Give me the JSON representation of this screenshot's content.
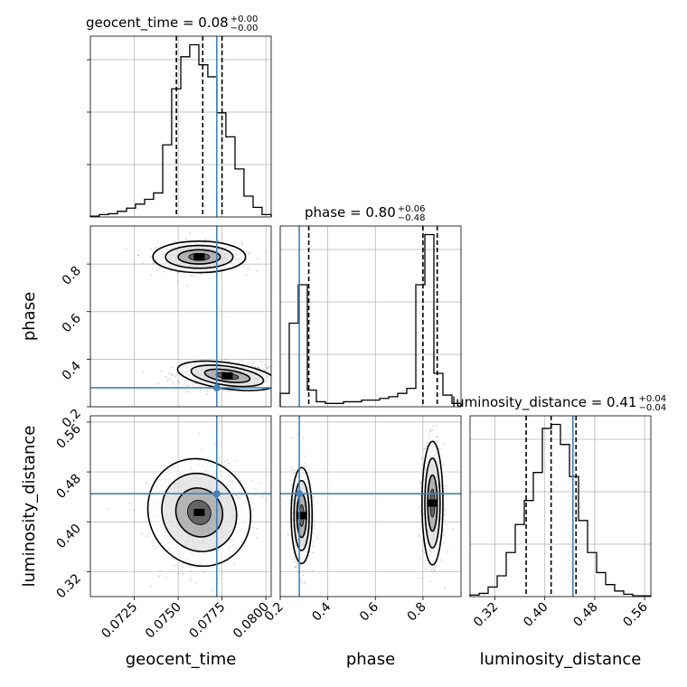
{
  "chart_data": {
    "type": "corner",
    "parameters": [
      "geocent_time",
      "phase",
      "luminosity_distance"
    ],
    "colors": {
      "truth": "#4682b4",
      "hist": "#000000",
      "grid": "#b0b0b0",
      "scatter": "#808080"
    },
    "titles": [
      {
        "param": "geocent_time",
        "text": "geocent_time = 0.08",
        "upper": "+0.00",
        "lower": "−0.00"
      },
      {
        "param": "phase",
        "text": "phase = 0.80",
        "upper": "+0.06",
        "lower": "−0.48"
      },
      {
        "param": "luminosity_distance",
        "text": "luminosity_distance = 0.41",
        "upper": "+0.04",
        "lower": "−0.04"
      }
    ],
    "ranges": {
      "geocent_time": [
        0.07,
        0.0803
      ],
      "phase": [
        0.2,
        0.96
      ],
      "luminosity_distance": [
        0.28,
        0.57
      ]
    },
    "truths": {
      "geocent_time": 0.0772,
      "phase": 0.28,
      "luminosity_distance": 0.445
    },
    "quantiles": {
      "geocent_time": [
        0.0749,
        0.0764,
        0.0775
      ],
      "phase": [
        0.32,
        0.8,
        0.86
      ],
      "luminosity_distance": [
        0.37,
        0.41,
        0.45
      ]
    },
    "ticks": {
      "geocent_time": {
        "values": [
          0.0725,
          0.075,
          0.0775,
          0.08
        ],
        "labels": [
          "0.0725",
          "0.0750",
          "0.0775",
          "0.0800"
        ]
      },
      "phase": {
        "values": [
          0.2,
          0.4,
          0.6,
          0.8
        ],
        "labels": [
          "0.2",
          "0.4",
          "0.6",
          "0.8"
        ]
      },
      "luminosity_distance": {
        "values": [
          0.32,
          0.4,
          0.48,
          0.56
        ],
        "labels": [
          "0.32",
          "0.40",
          "0.48",
          "0.56"
        ]
      }
    },
    "histograms": {
      "geocent_time": {
        "edges": [
          0.07,
          0.07051,
          0.07103,
          0.07154,
          0.07206,
          0.07257,
          0.07309,
          0.0736,
          0.07412,
          0.07463,
          0.07515,
          0.07566,
          0.07618,
          0.07669,
          0.07721,
          0.07772,
          0.07824,
          0.07875,
          0.07927,
          0.07978,
          0.0803
        ],
        "counts": [
          1,
          3,
          4,
          7,
          11,
          16,
          22,
          30,
          90,
          160,
          200,
          215,
          190,
          175,
          130,
          100,
          60,
          26,
          12,
          3
        ]
      },
      "phase": {
        "edges": [
          0.2,
          0.238,
          0.276,
          0.314,
          0.352,
          0.39,
          0.428,
          0.466,
          0.504,
          0.542,
          0.58,
          0.618,
          0.656,
          0.694,
          0.732,
          0.77,
          0.808,
          0.846,
          0.884,
          0.922,
          0.96
        ],
        "counts": [
          8,
          50,
          73,
          10,
          3,
          2,
          2,
          3,
          3,
          4,
          4,
          5,
          6,
          8,
          11,
          73,
          103,
          20,
          7,
          2
        ]
      },
      "luminosity_distance": {
        "edges": [
          0.28,
          0.2945,
          0.309,
          0.3235,
          0.338,
          0.3525,
          0.367,
          0.3815,
          0.396,
          0.4105,
          0.425,
          0.4395,
          0.454,
          0.4685,
          0.483,
          0.4975,
          0.512,
          0.5265,
          0.541,
          0.5555,
          0.57
        ],
        "counts": [
          2,
          4,
          12,
          26,
          55,
          90,
          120,
          155,
          210,
          215,
          190,
          150,
          95,
          55,
          30,
          15,
          7,
          3,
          1,
          1
        ]
      }
    },
    "contour_modes": {
      "geocent_time_vs_phase": [
        {
          "center": [
            0.0762,
            0.83
          ],
          "spread": [
            0.0012,
            0.03
          ],
          "angle": 0
        },
        {
          "center": [
            0.0778,
            0.33
          ],
          "spread": [
            0.0013,
            0.025
          ],
          "angle": -8
        }
      ],
      "geocent_time_vs_luminosity_distance": [
        {
          "center": [
            0.0762,
            0.415
          ],
          "spread": [
            0.0013,
            0.04
          ],
          "angle": 30
        }
      ],
      "phase_vs_luminosity_distance": [
        {
          "center": [
            0.29,
            0.41
          ],
          "spread": [
            0.02,
            0.035
          ],
          "angle": 0
        },
        {
          "center": [
            0.84,
            0.43
          ],
          "spread": [
            0.02,
            0.045
          ],
          "angle": 0
        }
      ]
    }
  }
}
